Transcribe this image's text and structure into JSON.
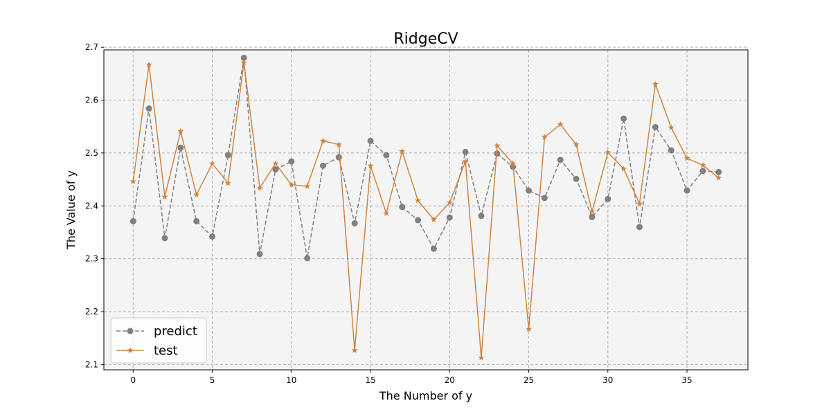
{
  "chart_data": {
    "type": "line",
    "title": "RidgeCV",
    "xlabel": "The Number of y",
    "ylabel": "The Value of y",
    "xlim": [
      -1.85,
      38.85
    ],
    "ylim": [
      2.09,
      2.695
    ],
    "xticks": [
      0,
      5,
      10,
      15,
      20,
      25,
      30,
      35
    ],
    "yticks": [
      2.1,
      2.2,
      2.3,
      2.4,
      2.5,
      2.6,
      2.7
    ],
    "xtick_labels": [
      "0",
      "5",
      "10",
      "15",
      "20",
      "25",
      "30",
      "35"
    ],
    "ytick_labels": [
      "2.1",
      "2.2",
      "2.3",
      "2.4",
      "2.5",
      "2.6",
      "2.7"
    ],
    "grid": true,
    "legend_position": "lower-left",
    "x": [
      0,
      1,
      2,
      3,
      4,
      5,
      6,
      7,
      8,
      9,
      10,
      11,
      12,
      13,
      14,
      15,
      16,
      17,
      18,
      19,
      20,
      21,
      22,
      23,
      24,
      25,
      26,
      27,
      28,
      29,
      30,
      31,
      32,
      33,
      34,
      35,
      36,
      37
    ],
    "series": [
      {
        "name": "predict",
        "color": "#808080",
        "line_style": "dashed",
        "marker": "circle",
        "values": [
          2.371,
          2.584,
          2.339,
          2.51,
          2.371,
          2.342,
          2.496,
          2.68,
          2.309,
          2.469,
          2.484,
          2.301,
          2.476,
          2.492,
          2.367,
          2.523,
          2.496,
          2.398,
          2.373,
          2.319,
          2.378,
          2.502,
          2.381,
          2.499,
          2.474,
          2.429,
          2.415,
          2.487,
          2.451,
          2.379,
          2.413,
          2.565,
          2.36,
          2.549,
          2.505,
          2.429,
          2.466,
          2.464
        ]
      },
      {
        "name": "test",
        "color": "#cd853f",
        "line_style": "solid",
        "marker": "star",
        "values": [
          2.446,
          2.667,
          2.417,
          2.541,
          2.421,
          2.48,
          2.443,
          2.671,
          2.434,
          2.48,
          2.44,
          2.437,
          2.523,
          2.516,
          2.127,
          2.476,
          2.386,
          2.503,
          2.41,
          2.374,
          2.406,
          2.484,
          2.113,
          2.514,
          2.48,
          2.167,
          2.53,
          2.554,
          2.516,
          2.389,
          2.501,
          2.47,
          2.404,
          2.63,
          2.548,
          2.49,
          2.477,
          2.453
        ]
      }
    ]
  },
  "colors": {
    "plot_background": "#f4f4f4",
    "grid": "#b0b0b0",
    "axes": "#000000"
  }
}
